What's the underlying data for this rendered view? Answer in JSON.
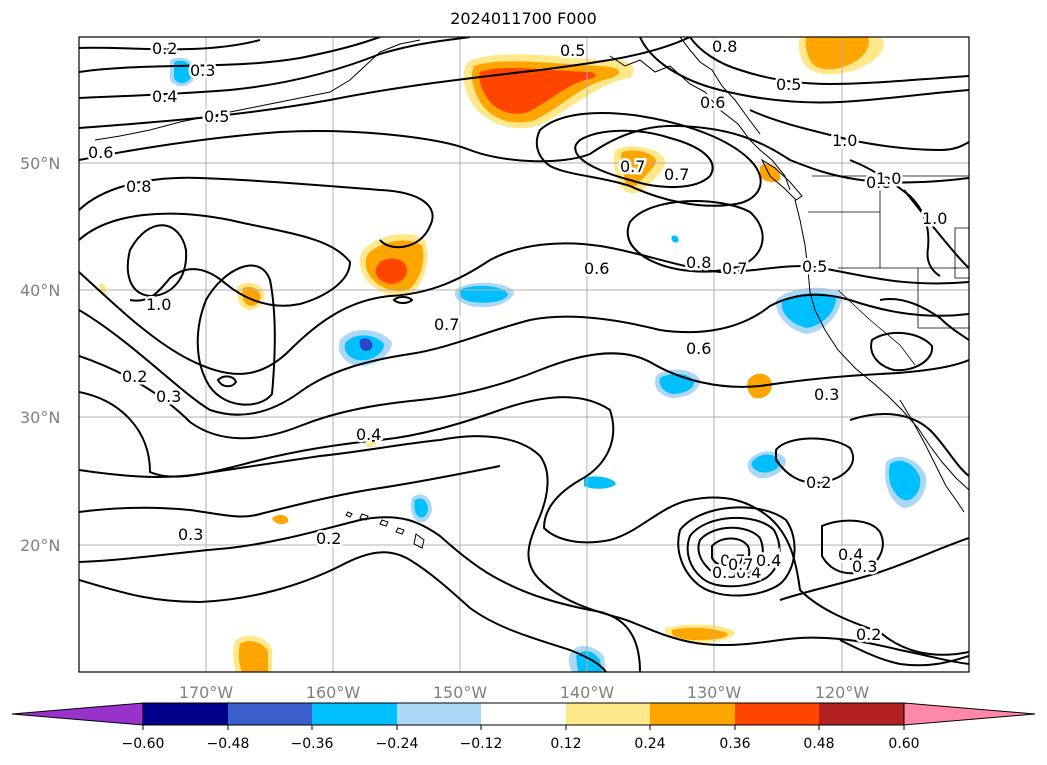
{
  "map": {
    "title": "2024011700 F000",
    "lat_labels": [
      "50°N",
      "40°N",
      "30°N",
      "20°N"
    ],
    "lon_labels": [
      "170°W",
      "160°W",
      "150°W",
      "140°W",
      "130°W",
      "120°W"
    ],
    "contour_labels": [
      "0.2",
      "0.3",
      "0.4",
      "0.5",
      "0.6",
      "0.8",
      "1.0",
      "0.2",
      "0.3",
      "0.4",
      "0.5",
      "0.7",
      "0.8",
      "0.5",
      "0.8",
      "0.7",
      "1.0",
      "0.8",
      "1.0",
      "0.6",
      "0.6",
      "0.8",
      "0.7",
      "0.5",
      "0.7",
      "0.6",
      "0.3",
      "0.2",
      "0.4",
      "0.3",
      "0.2",
      "0.7",
      "0.5",
      "0.4",
      "0.4",
      "0.3",
      "0.2",
      "0.7",
      "1.0"
    ],
    "colors": {
      "land_line": "#000000",
      "grid": "#b0b0b0",
      "neg_strong": "#2b45c4",
      "neg_mid": "#00bfff",
      "neg_weak": "#add8f5",
      "pos_weak": "#ffe88a",
      "pos_mid": "#ffa500",
      "pos_strong": "#ff4500"
    }
  },
  "colorbar": {
    "ticks": [
      "−0.60",
      "−0.48",
      "−0.36",
      "−0.24",
      "−0.12",
      "0.12",
      "0.24",
      "0.36",
      "0.48",
      "0.60"
    ],
    "colors": [
      "#9932cc",
      "#00008b",
      "#3a5fcd",
      "#00bfff",
      "#add8f5",
      "#ffffff",
      "#ffe88a",
      "#ffa500",
      "#ff4500",
      "#b22222",
      "#ff88aa"
    ]
  }
}
